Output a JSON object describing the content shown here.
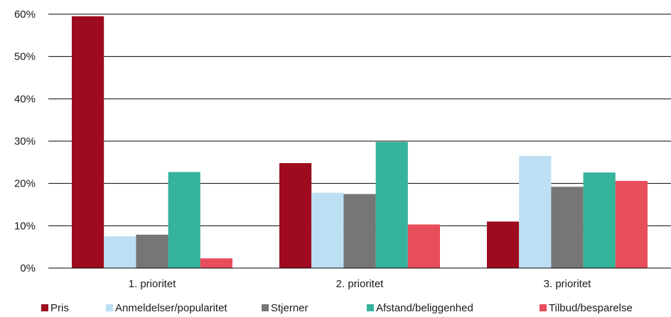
{
  "chart_data": {
    "type": "bar",
    "categories": [
      "1. prioritet",
      "2. prioritet",
      "3. prioritet"
    ],
    "series": [
      {
        "name": "Pris",
        "color": "#9e0b1f",
        "values": [
          59.5,
          24.8,
          11.0
        ]
      },
      {
        "name": "Anmeldelser/popularitet",
        "color": "#bcdff4",
        "values": [
          7.5,
          17.8,
          26.5
        ]
      },
      {
        "name": "Stjerner",
        "color": "#767676",
        "values": [
          7.9,
          17.5,
          19.2
        ]
      },
      {
        "name": "Afstand/beliggenhed",
        "color": "#35b39b",
        "values": [
          22.7,
          29.8,
          22.6
        ]
      },
      {
        "name": "Tilbud/besparelse",
        "color": "#e84d5b",
        "values": [
          2.3,
          10.3,
          20.6
        ]
      }
    ],
    "y_ticks": [
      "0%",
      "10%",
      "20%",
      "30%",
      "40%",
      "50%",
      "60%"
    ],
    "ylim": [
      0,
      60
    ],
    "grid": true,
    "legend_position": "bottom"
  }
}
